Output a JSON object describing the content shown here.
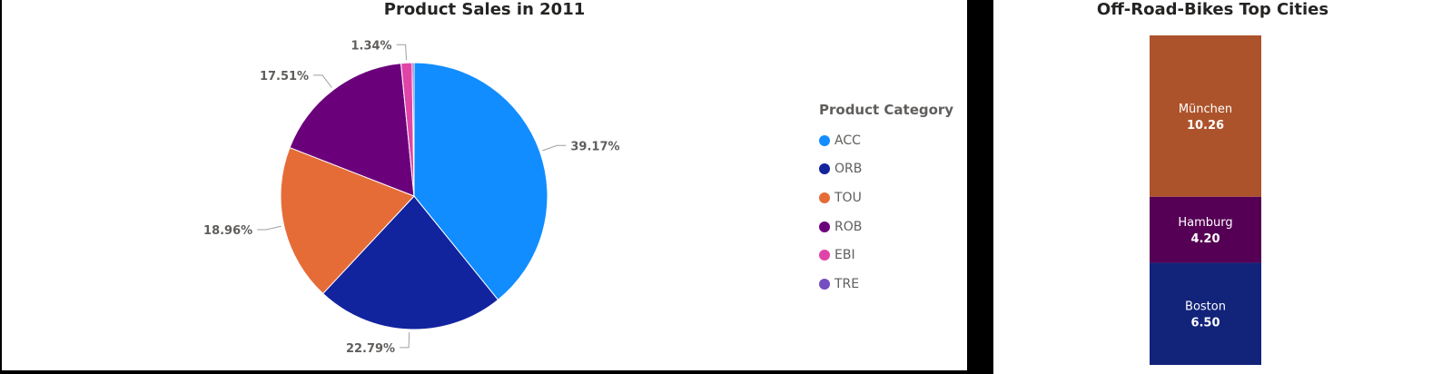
{
  "pie_chart": {
    "title": "Product Sales in 2011",
    "legend_title": "Product Category"
  },
  "bar_chart": {
    "title": "Off-Road-Bikes Top Cities"
  },
  "chart_data": [
    {
      "type": "pie",
      "title": "Product Sales in 2011",
      "legend_title": "Product Category",
      "legend_position": "right",
      "slices": [
        {
          "label": "ACC",
          "value": 39.17,
          "display": "39.17%",
          "color": "#118DFF"
        },
        {
          "label": "ORB",
          "value": 22.79,
          "display": "22.79%",
          "color": "#12239E"
        },
        {
          "label": "TOU",
          "value": 18.96,
          "display": "18.96%",
          "color": "#E66C37"
        },
        {
          "label": "ROB",
          "value": 17.51,
          "display": "17.51%",
          "color": "#6B007B"
        },
        {
          "label": "EBI",
          "value": 1.34,
          "display": "1.34%",
          "color": "#E044A7"
        },
        {
          "label": "TRE",
          "value": 0.23,
          "display": "",
          "color": "#744EC2"
        }
      ]
    },
    {
      "type": "bar",
      "stacked": true,
      "title": "Off-Road-Bikes Top Cities",
      "segments": [
        {
          "label": "Boston",
          "value": 6.5,
          "display": "6.50",
          "color": "#12237A"
        },
        {
          "label": "Hamburg",
          "value": 4.2,
          "display": "4.20",
          "color": "#550055"
        },
        {
          "label": "München",
          "value": 10.26,
          "display": "10.26",
          "color": "#AD532B"
        }
      ]
    }
  ]
}
